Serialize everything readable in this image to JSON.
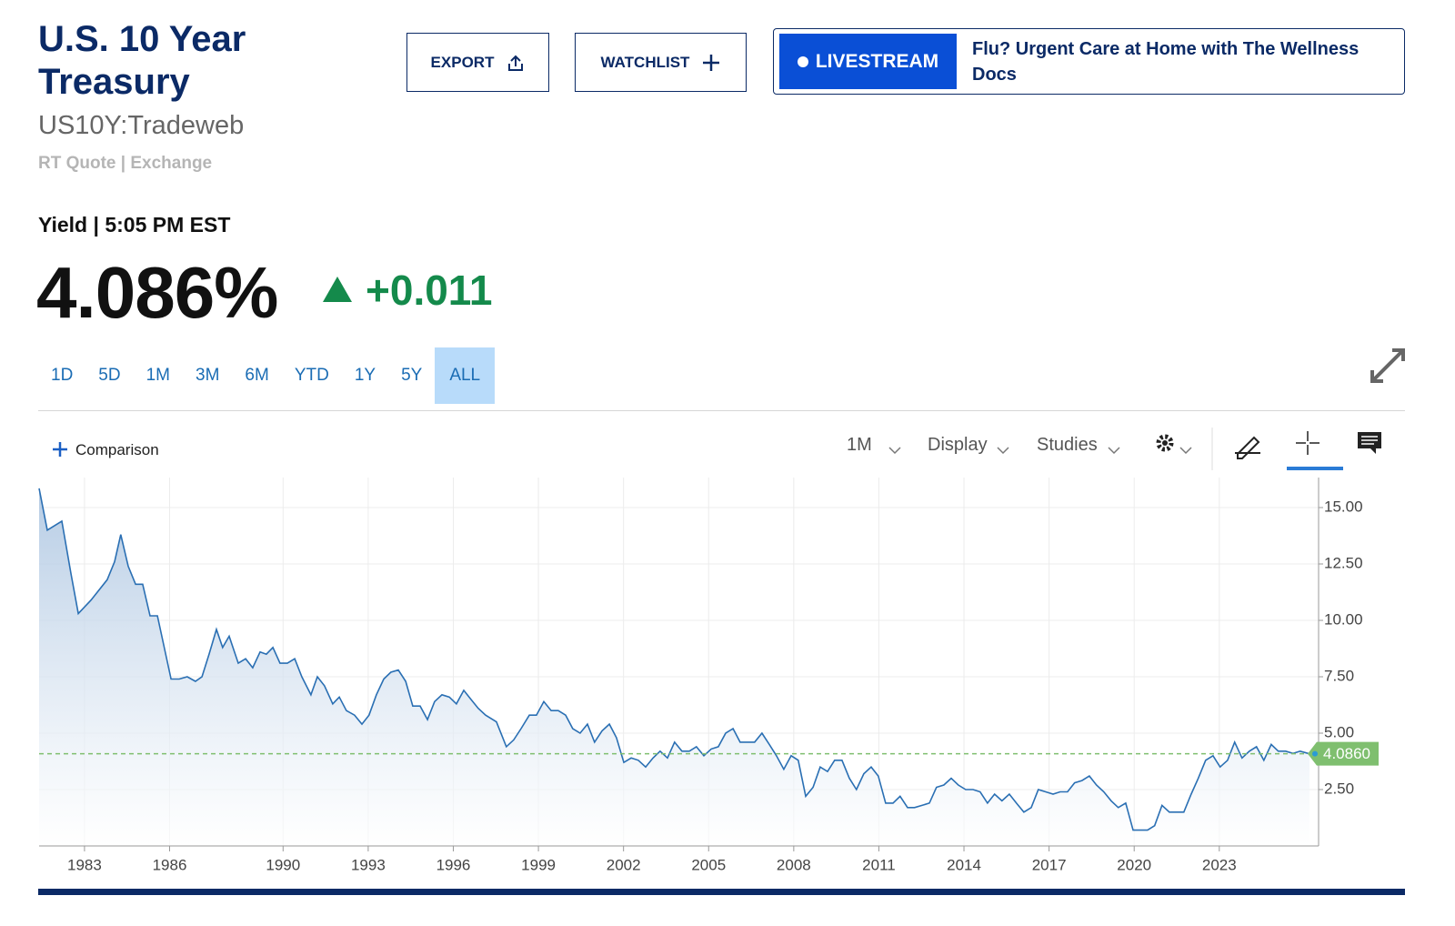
{
  "header": {
    "title": "U.S. 10 Year Treasury",
    "symbol": "US10Y:Tradeweb",
    "quote_source": "RT Quote | Exchange"
  },
  "buttons": {
    "export": "EXPORT",
    "watchlist": "WATCHLIST"
  },
  "promo": {
    "badge": "LIVESTREAM",
    "text": "Flu? Urgent Care at Home with The Wellness Docs"
  },
  "quote": {
    "label": "Yield | 5:05 PM EST",
    "price": "4.086%",
    "change": "+0.011"
  },
  "ranges": [
    {
      "label": "1D"
    },
    {
      "label": "5D"
    },
    {
      "label": "1M"
    },
    {
      "label": "3M"
    },
    {
      "label": "6M"
    },
    {
      "label": "YTD"
    },
    {
      "label": "1Y"
    },
    {
      "label": "5Y"
    },
    {
      "label": "ALL",
      "selected": true
    }
  ],
  "toolbar": {
    "comparison": "Comparison",
    "interval": "1M",
    "display": "Display",
    "studies": "Studies"
  },
  "chart_data": {
    "type": "line",
    "color": "#2a6fb3",
    "area": true,
    "grid": true,
    "x": [
      1981.4,
      1981.69,
      1982.2,
      1982.52,
      1982.78,
      1983.23,
      1983.8,
      1984.06,
      1984.28,
      1984.54,
      1984.8,
      1985.05,
      1985.31,
      1985.57,
      1986.05,
      1986.34,
      1986.62,
      1986.91,
      1987.14,
      1987.39,
      1987.65,
      1987.87,
      1988.1,
      1988.42,
      1988.68,
      1988.93,
      1989.19,
      1989.41,
      1989.64,
      1989.89,
      1990.15,
      1990.41,
      1990.66,
      1990.98,
      1991.21,
      1991.46,
      1991.75,
      1991.98,
      1992.23,
      1992.52,
      1992.78,
      1993.03,
      1993.29,
      1993.55,
      1993.8,
      1994.06,
      1994.32,
      1994.57,
      1994.83,
      1995.09,
      1995.34,
      1995.6,
      1995.86,
      1996.11,
      1996.37,
      1996.62,
      1996.88,
      1997.14,
      1997.52,
      1997.87,
      1998.13,
      1998.39,
      1998.68,
      1998.93,
      1999.19,
      1999.45,
      1999.7,
      1999.96,
      2000.21,
      2000.47,
      2000.73,
      2000.98,
      2001.24,
      2001.5,
      2001.75,
      2002.01,
      2002.27,
      2002.52,
      2002.78,
      2003.04,
      2003.29,
      2003.55,
      2003.8,
      2004.06,
      2004.32,
      2004.57,
      2004.83,
      2005.09,
      2005.34,
      2005.6,
      2005.86,
      2006.11,
      2006.37,
      2006.62,
      2006.88,
      2007.14,
      2007.39,
      2007.65,
      2007.91,
      2008.16,
      2008.42,
      2008.68,
      2008.93,
      2009.19,
      2009.44,
      2009.7,
      2009.96,
      2010.21,
      2010.47,
      2010.73,
      2010.98,
      2011.24,
      2011.5,
      2011.75,
      2012.01,
      2012.26,
      2012.52,
      2012.78,
      2013.03,
      2013.29,
      2013.55,
      2013.8,
      2014.06,
      2014.32,
      2014.57,
      2014.83,
      2015.08,
      2015.34,
      2015.6,
      2015.85,
      2016.11,
      2016.37,
      2016.62,
      2016.88,
      2017.14,
      2017.39,
      2017.65,
      2017.9,
      2018.16,
      2018.42,
      2018.67,
      2018.93,
      2019.19,
      2019.44,
      2019.7,
      2019.96,
      2020.21,
      2020.47,
      2020.72,
      2020.98,
      2021.24,
      2021.49,
      2021.75,
      2022.01,
      2022.26,
      2022.52,
      2022.78,
      2023.03,
      2023.29,
      2023.54,
      2023.8,
      2024.06,
      2024.31,
      2024.57,
      2024.83,
      2025.08,
      2025.34,
      2025.6,
      2025.85,
      2026.18
    ],
    "values": [
      15.85,
      14.0,
      14.4,
      12.1,
      10.3,
      10.9,
      11.8,
      12.6,
      13.8,
      12.4,
      11.6,
      11.6,
      10.2,
      10.2,
      7.4,
      7.4,
      7.5,
      7.3,
      7.5,
      8.5,
      9.6,
      8.8,
      9.3,
      8.1,
      8.3,
      7.9,
      8.6,
      8.5,
      8.8,
      8.1,
      8.1,
      8.3,
      7.5,
      6.7,
      7.5,
      7.1,
      6.3,
      6.6,
      6.0,
      5.8,
      5.4,
      5.8,
      6.7,
      7.4,
      7.7,
      7.8,
      7.3,
      6.2,
      6.2,
      5.6,
      6.4,
      6.7,
      6.6,
      6.3,
      6.9,
      6.5,
      6.1,
      5.8,
      5.5,
      4.4,
      4.7,
      5.2,
      5.8,
      5.8,
      6.4,
      6.0,
      6.0,
      5.8,
      5.2,
      5.0,
      5.4,
      4.6,
      5.1,
      5.4,
      4.8,
      3.7,
      3.9,
      3.8,
      3.5,
      3.9,
      4.2,
      3.9,
      4.6,
      4.2,
      4.2,
      4.4,
      4.0,
      4.3,
      4.4,
      5.0,
      5.2,
      4.6,
      4.6,
      4.6,
      5.0,
      4.5,
      4.0,
      3.4,
      4.0,
      3.8,
      2.2,
      2.6,
      3.5,
      3.3,
      3.8,
      3.8,
      3.0,
      2.5,
      3.2,
      3.5,
      3.1,
      1.9,
      1.9,
      2.2,
      1.7,
      1.7,
      1.8,
      1.9,
      2.6,
      2.7,
      3.0,
      2.7,
      2.5,
      2.5,
      2.4,
      1.9,
      2.3,
      2.0,
      2.3,
      1.9,
      1.5,
      1.7,
      2.5,
      2.4,
      2.3,
      2.4,
      2.4,
      2.8,
      2.9,
      3.1,
      2.7,
      2.4,
      2.0,
      1.7,
      1.9,
      0.7,
      0.7,
      0.7,
      0.9,
      1.8,
      1.5,
      1.5,
      1.5,
      2.3,
      3.0,
      3.8,
      4.0,
      3.5,
      3.8,
      4.6,
      3.9,
      4.2,
      4.4,
      3.8,
      4.5,
      4.2,
      4.2,
      4.1,
      4.2,
      4.086
    ],
    "xlim": [
      1981.4,
      2026.5
    ],
    "xticks": [
      1983,
      1986,
      1990,
      1993,
      1996,
      1999,
      2002,
      2005,
      2008,
      2011,
      2014,
      2017,
      2020,
      2023
    ],
    "ylim": [
      0,
      16.33
    ],
    "yticks": [
      {
        "value": 2.5,
        "label": "2.50"
      },
      {
        "value": 5,
        "label": "5.00"
      },
      {
        "value": 7.5,
        "label": "7.50"
      },
      {
        "value": 10,
        "label": "10.00"
      },
      {
        "value": 12.5,
        "label": "12.50"
      },
      {
        "value": 15,
        "label": "15.00"
      }
    ],
    "reference_line": {
      "value": 4.086,
      "label": "4.0860",
      "color": "#7fbf6f"
    }
  }
}
